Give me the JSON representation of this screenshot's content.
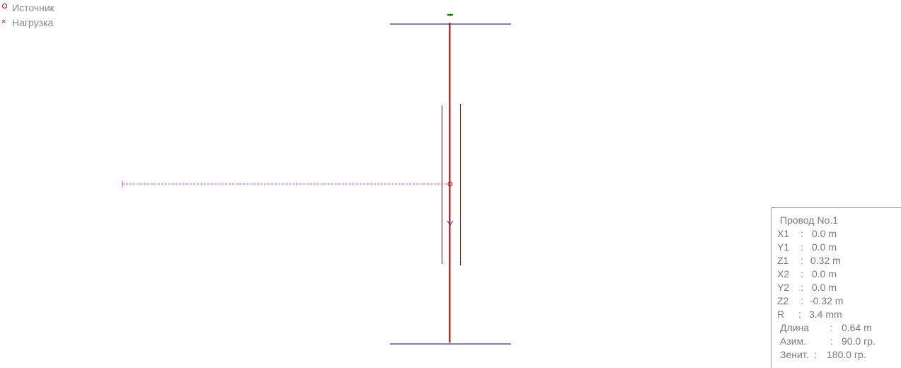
{
  "legend": {
    "items": [
      {
        "marker": "circle",
        "label": "Источник",
        "color": "#d00000"
      },
      {
        "marker": "cross",
        "label": "Нагрузка",
        "color": "#d00000"
      }
    ]
  },
  "info": {
    "title": "Провод No.1",
    "rows": [
      {
        "key": "X1",
        "sep": ":",
        "value": "0.0 m"
      },
      {
        "key": "Y1",
        "sep": ":",
        "value": "0.0 m"
      },
      {
        "key": "Z1",
        "sep": ":",
        "value": "0.32 m"
      },
      {
        "key": "X2",
        "sep": ":",
        "value": "0.0 m"
      },
      {
        "key": "Y2",
        "sep": ":",
        "value": "0.0 m"
      },
      {
        "key": "Z2",
        "sep": ":",
        "value": "-0.32 m"
      },
      {
        "key": "R",
        "sep": ":",
        "value": "3.4 mm"
      },
      {
        "key": "Длина",
        "sep": ":",
        "value": "0.64 m"
      },
      {
        "key": "Азим.",
        "sep": ":",
        "value": "90.0 гр."
      },
      {
        "key": "Зенит.",
        "sep": ":",
        "value": "180.0 гр."
      }
    ]
  },
  "colors": {
    "wire_selected": "#cc0000",
    "wire_outline": "#8b0000",
    "ground_lines": "#00008b",
    "source_feed": "#e040e0",
    "direction_marker": "#2a2ab0",
    "top_marker": "#008000",
    "text": "#7a7a7a"
  }
}
